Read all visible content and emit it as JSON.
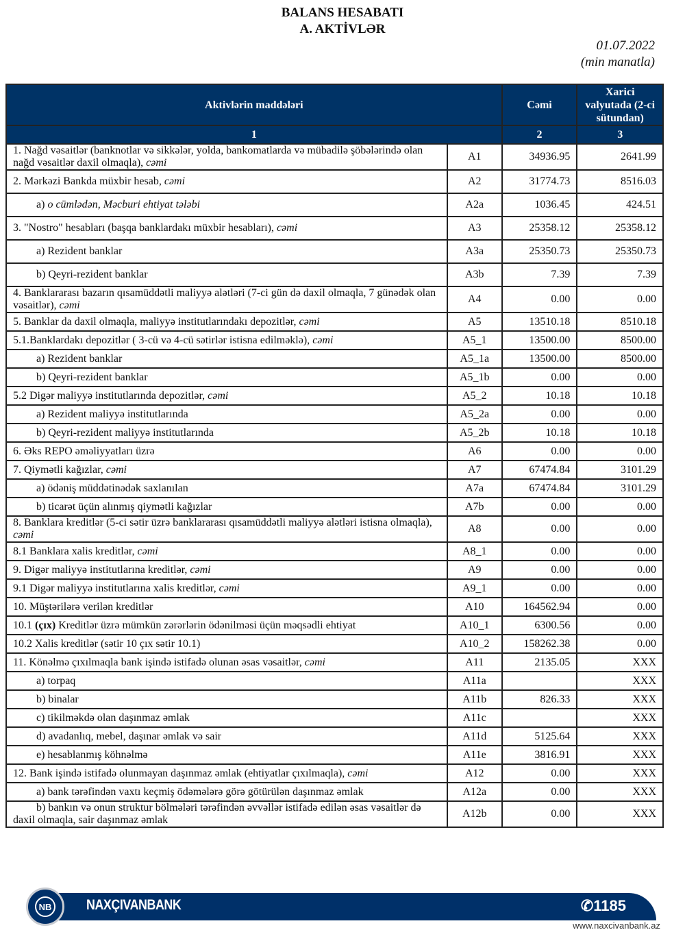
{
  "header": {
    "title": "BALANS HESABATI",
    "subtitle": "A. AKTİVLƏR",
    "date": "01.07.2022",
    "unit": "(min manatla)"
  },
  "table": {
    "columns": [
      "Aktivlərin maddələri",
      "Cəmi",
      "Xarici valyutada (2-ci sütundan)"
    ],
    "column_numbers": [
      "1",
      "2",
      "3"
    ],
    "rows": [
      {
        "label": [
          {
            "t": "1. Nağd vəsaitlər (banknotlar və sikkələr, yolda, bankomatlarda və mübadilə şöbələrində olan nağd vəsaitlər daxil olmaqla), "
          },
          {
            "t": "cəmi",
            "s": "i"
          }
        ],
        "code": "A1",
        "total": "34936.95",
        "foreign": "2641.99"
      },
      {
        "label": [
          {
            "t": "2. Mərkəzi Bankda müxbir hesab"
          },
          {
            "t": ", cəmi",
            "s": "i"
          }
        ],
        "code": "A2",
        "total": "31774.73",
        "foreign": "8516.03"
      },
      {
        "label": [
          {
            "t": "a) "
          },
          {
            "t": "o cümlədən, Məcburi ehtiyat tələbi",
            "s": "i"
          }
        ],
        "code": "A2a",
        "total": "1036.45",
        "foreign": "424.51"
      },
      {
        "label": [
          {
            "t": "3. \"Nostro\" hesabları (başqa banklardakı müxbir hesabları), "
          },
          {
            "t": "cəmi",
            "s": "i"
          }
        ],
        "code": "A3",
        "total": "25358.12",
        "foreign": "25358.12"
      },
      {
        "label": [
          {
            "t": "a) Rezident banklar"
          }
        ],
        "code": "A3a",
        "total": "25350.73",
        "foreign": "25350.73"
      },
      {
        "label": [
          {
            "t": "b) Qeyri-rezident banklar"
          }
        ],
        "code": "A3b",
        "total": "7.39",
        "foreign": "7.39"
      },
      {
        "label": [
          {
            "t": "4. Banklararası bazarın qısamüddətli maliyyə alətləri (7-ci gün də daxil olmaqla, 7 günədək olan vəsaitlər), "
          },
          {
            "t": "cəmi",
            "s": "i"
          }
        ],
        "code": "A4",
        "total": "0.00",
        "foreign": "0.00"
      },
      {
        "label": [
          {
            "t": "5. Banklar da daxil olmaqla, maliyyə institutlarındakı depozitlər, "
          },
          {
            "t": "cəmi",
            "s": "i"
          }
        ],
        "code": "A5",
        "total": "13510.18",
        "foreign": "8510.18"
      },
      {
        "label": [
          {
            "t": "5.1.Banklardakı depozitlər ( 3-cü və 4-cü sətirlər istisna edilməklə), "
          },
          {
            "t": "cəmi",
            "s": "i"
          }
        ],
        "code": "A5_1",
        "total": "13500.00",
        "foreign": "8500.00"
      },
      {
        "label": [
          {
            "t": "a) Rezident banklar"
          }
        ],
        "code": "A5_1a",
        "total": "13500.00",
        "foreign": "8500.00"
      },
      {
        "label": [
          {
            "t": "b) Qeyri-rezident banklar"
          }
        ],
        "code": "A5_1b",
        "total": "0.00",
        "foreign": "0.00"
      },
      {
        "label": [
          {
            "t": "5.2 Digər maliyyə institutlarında depozitlər, "
          },
          {
            "t": "cəmi",
            "s": "i"
          }
        ],
        "code": "A5_2",
        "total": "10.18",
        "foreign": "10.18"
      },
      {
        "label": [
          {
            "t": "a) Rezident maliyyə institutlarında"
          }
        ],
        "code": "A5_2a",
        "total": "0.00",
        "foreign": "0.00"
      },
      {
        "label": [
          {
            "t": "b) Qeyri-rezident maliyyə institutlarında"
          }
        ],
        "code": "A5_2b",
        "total": "10.18",
        "foreign": "10.18"
      },
      {
        "label": [
          {
            "t": "6. Əks REPO əməliyyatları üzrə"
          }
        ],
        "code": "A6",
        "total": "0.00",
        "foreign": "0.00"
      },
      {
        "label": [
          {
            "t": "7. Qiymətli kağızlar, "
          },
          {
            "t": "cəmi",
            "s": "i"
          }
        ],
        "code": "A7",
        "total": "67474.84",
        "foreign": "3101.29"
      },
      {
        "label": [
          {
            "t": "a) ödəniş müddətinədək saxlanılan"
          }
        ],
        "code": "A7a",
        "total": "67474.84",
        "foreign": "3101.29"
      },
      {
        "label": [
          {
            "t": "b) ticarət üçün alınmış qiymətli kağızlar"
          }
        ],
        "code": "A7b",
        "total": "0.00",
        "foreign": "0.00"
      },
      {
        "label": [
          {
            "t": "8. Banklara kreditlər (5-ci sətir üzrə banklararası qısamüddətli maliyyə alətləri istisna olmaqla), "
          },
          {
            "t": "cəmi",
            "s": "i"
          }
        ],
        "code": "A8",
        "total": "0.00",
        "foreign": "0.00"
      },
      {
        "label": [
          {
            "t": "8.1 Banklara xalis kreditlər, "
          },
          {
            "t": "cəmi",
            "s": "i"
          }
        ],
        "code": "A8_1",
        "total": "0.00",
        "foreign": "0.00"
      },
      {
        "label": [
          {
            "t": "9. Digər maliyyə institutlarına kreditlər, "
          },
          {
            "t": "cəmi",
            "s": "i"
          }
        ],
        "code": "A9",
        "total": "0.00",
        "foreign": "0.00"
      },
      {
        "label": [
          {
            "t": "9.1 Digər maliyyə institutlarına xalis kreditlər, "
          },
          {
            "t": "cəmi",
            "s": "i"
          }
        ],
        "code": "A9_1",
        "total": "0.00",
        "foreign": "0.00"
      },
      {
        "label": [
          {
            "t": "10. Müştərilərə verilən kreditlər"
          }
        ],
        "code": "A10",
        "total": "164562.94",
        "foreign": "0.00"
      },
      {
        "label": [
          {
            "t": "10.1 "
          },
          {
            "t": "(çıx)",
            "s": "b"
          },
          {
            "t": " Kreditlər üzrə mümkün zərərlərin ödənilməsi üçün məqsədli ehtiyat"
          }
        ],
        "code": "A10_1",
        "total": "6300.56",
        "foreign": "0.00"
      },
      {
        "label": [
          {
            "t": "10.2 Xalis kreditlər (sətir 10 çıx sətir 10.1)"
          }
        ],
        "code": "A10_2",
        "total": "158262.38",
        "foreign": "0.00"
      },
      {
        "label": [
          {
            "t": "11. Könəlmə çıxılmaqla bank işində istifadə olunan əsas vəsaitlər, "
          },
          {
            "t": "cəmi",
            "s": "i"
          }
        ],
        "code": "A11",
        "total": "2135.05",
        "foreign": "XXX"
      },
      {
        "label": [
          {
            "t": "a) torpaq"
          }
        ],
        "code": "A11a",
        "total": "",
        "foreign": "XXX"
      },
      {
        "label": [
          {
            "t": "b) binalar"
          }
        ],
        "code": "A11b",
        "total": "826.33",
        "foreign": "XXX"
      },
      {
        "label": [
          {
            "t": "c) tikilməkdə olan daşınmaz əmlak"
          }
        ],
        "code": "A11c",
        "total": "",
        "foreign": "XXX"
      },
      {
        "label": [
          {
            "t": "d) avadanlıq, mebel, daşınar əmlak və sair"
          }
        ],
        "code": "A11d",
        "total": "5125.64",
        "foreign": "XXX"
      },
      {
        "label": [
          {
            "t": "e) hesablanmış köhnəlmə"
          }
        ],
        "code": "A11e",
        "total": "3816.91",
        "foreign": "XXX"
      },
      {
        "label": [
          {
            "t": "12. Bank işində istifadə olunmayan daşınmaz əmlak (ehtiyatlar çıxılmaqla), "
          },
          {
            "t": "cəmi",
            "s": "i"
          }
        ],
        "code": "A12",
        "total": "0.00",
        "foreign": "XXX"
      },
      {
        "label": [
          {
            "t": "a) bank tərəfindən vaxtı keçmiş ödəmələrə görə götürülən daşınmaz əmlak"
          }
        ],
        "code": "A12a",
        "total": "0.00",
        "foreign": "XXX"
      },
      {
        "label": [
          {
            "t": "b) bankın və onun struktur bölmələri tərəfindən əvvəllər istifadə edilən əsas vəsaitlər də daxil olmaqla, sair daşınmaz əmlak"
          }
        ],
        "code": "A12b",
        "total": "0.00",
        "foreign": "XXX"
      }
    ]
  },
  "footer": {
    "logo_text": "NB",
    "brand": "NAXÇIVANBANK",
    "phone_icon": "phone-icon",
    "phone": "1185",
    "website": "www.naxcivanbank.az",
    "brand_color": "#003069"
  }
}
